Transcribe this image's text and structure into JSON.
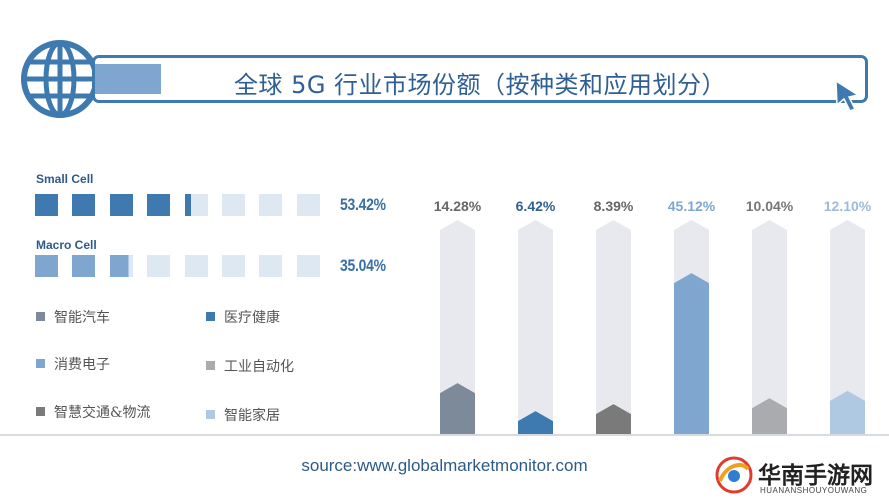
{
  "header": {
    "title": "全球 5G 行业市场份额（按种类和应用划分）"
  },
  "cells": [
    {
      "label": "Small Cell",
      "percent_label": "53.42%",
      "filled_fraction": 0.5342,
      "filled_color": "#3e79b0"
    },
    {
      "label": "Macro Cell",
      "percent_label": "35.04%",
      "filled_fraction": 0.3504,
      "filled_color": "#7ea6cf"
    }
  ],
  "cell_empty_color": "#dde8f3",
  "legend": [
    {
      "label": "智能汽车",
      "color": "#7d8a9a"
    },
    {
      "label": "医疗健康",
      "color": "#3e79b0"
    },
    {
      "label": "消费电子",
      "color": "#7ea6cf"
    },
    {
      "label": "工业自动化",
      "color": "#a9abae"
    },
    {
      "label": "智慧交通&物流",
      "color": "#7a7a7a"
    },
    {
      "label": "智能家居",
      "color": "#afc9e3"
    }
  ],
  "chart_data": {
    "type": "bar",
    "categories": [
      "智能汽车",
      "医疗健康",
      "智慧交通&物流",
      "消费电子",
      "工业自动化",
      "智能家居"
    ],
    "values": [
      14.28,
      6.42,
      8.39,
      45.12,
      10.04,
      12.1
    ],
    "labels": [
      "14.28%",
      "6.42%",
      "8.39%",
      "45.12%",
      "10.04%",
      "12.10%"
    ],
    "colors": [
      "#7d8a9a",
      "#3e79b0",
      "#7a7a7a",
      "#7ea6cf",
      "#a9abae",
      "#afc9e3"
    ],
    "label_colors": [
      "#666666",
      "#2f5f94",
      "#666666",
      "#7ea6cf",
      "#777777",
      "#9dbbd8"
    ],
    "track_color": "#e7e9ee",
    "ylim": [
      0,
      60
    ]
  },
  "source": "source:www.globalmarketmonitor.com",
  "watermark": {
    "title": "华南手游网",
    "subtitle": "HUANANSHOUYOUWANG"
  }
}
